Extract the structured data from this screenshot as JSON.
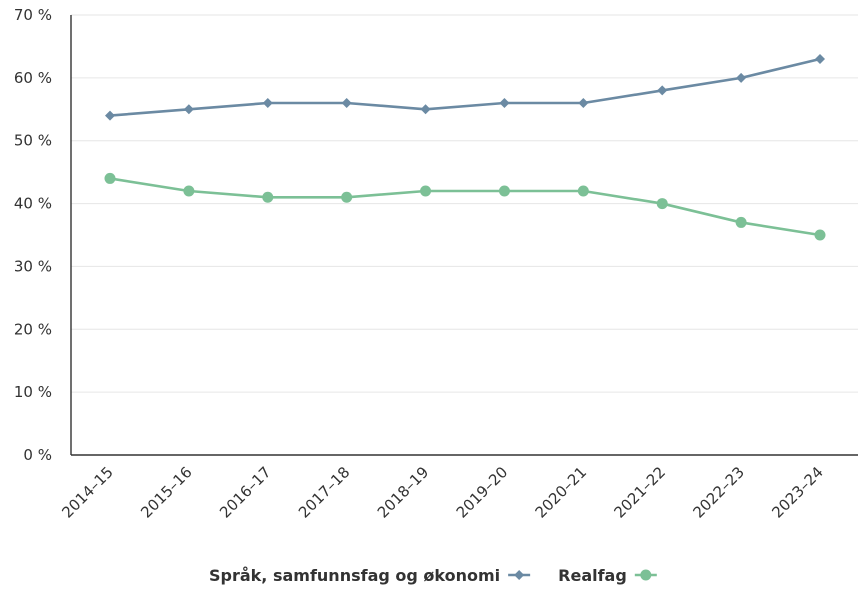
{
  "chart_data": {
    "type": "line",
    "title": "",
    "xlabel": "",
    "ylabel": "",
    "categories": [
      "2014–15",
      "2015–16",
      "2016–17",
      "2017–18",
      "2018–19",
      "2019–20",
      "2020–21",
      "2021–22",
      "2022–23",
      "2023–24"
    ],
    "y_ticks": [
      "0 %",
      "10 %",
      "20 %",
      "30 %",
      "40 %",
      "50 %",
      "60 %",
      "70 %"
    ],
    "ylim": [
      0,
      70
    ],
    "y_unit": "%",
    "grid": true,
    "legend_position": "bottom",
    "series": [
      {
        "name": "Språk, samfunnsfag og økonomi",
        "marker": "diamond",
        "color": "#6b8aa3",
        "values": [
          54,
          55,
          56,
          56,
          55,
          56,
          56,
          58,
          60,
          63
        ]
      },
      {
        "name": "Realfag",
        "marker": "circle",
        "color": "#7cc096",
        "values": [
          44,
          42,
          41,
          41,
          42,
          42,
          42,
          40,
          37,
          35
        ]
      }
    ]
  }
}
